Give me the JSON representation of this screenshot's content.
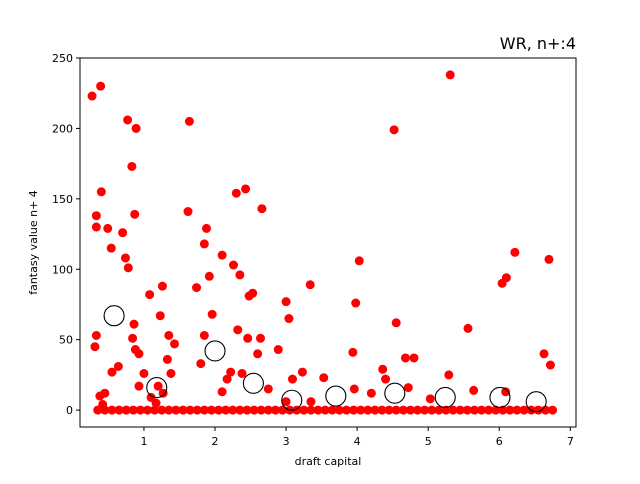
{
  "chart_data": {
    "type": "scatter",
    "title": "WR, n+:4",
    "xlabel": "draft capital",
    "ylabel": "fantasy value n+ 4",
    "xlim": [
      0.1,
      7.08
    ],
    "ylim": [
      -12,
      250
    ],
    "x_ticks": [
      1,
      2,
      3,
      4,
      5,
      6,
      7
    ],
    "y_ticks": [
      0,
      50,
      100,
      150,
      200,
      250
    ],
    "grid": false,
    "colors": {
      "points": "#ff0000",
      "means_edge": "#000000",
      "means_fill": "none"
    },
    "series": [
      {
        "marker": "filled-circle",
        "color": "#ff0000",
        "points": [
          [
            0.27,
            223
          ],
          [
            0.39,
            230
          ],
          [
            0.33,
            138
          ],
          [
            0.33,
            130
          ],
          [
            0.31,
            45
          ],
          [
            0.33,
            53
          ],
          [
            0.4,
            155
          ],
          [
            0.38,
            10
          ],
          [
            0.45,
            12
          ],
          [
            0.49,
            129
          ],
          [
            0.54,
            115
          ],
          [
            0.55,
            27
          ],
          [
            0.42,
            4
          ],
          [
            0.64,
            31
          ],
          [
            0.7,
            126
          ],
          [
            0.74,
            108
          ],
          [
            0.77,
            206
          ],
          [
            0.78,
            101
          ],
          [
            0.83,
            173
          ],
          [
            0.87,
            139
          ],
          [
            0.89,
            200
          ],
          [
            0.86,
            61
          ],
          [
            0.84,
            51
          ],
          [
            0.88,
            43
          ],
          [
            0.93,
            40
          ],
          [
            0.93,
            17
          ],
          [
            1.0,
            26
          ],
          [
            1.08,
            82
          ],
          [
            1.1,
            9
          ],
          [
            1.17,
            5
          ],
          [
            1.23,
            67
          ],
          [
            1.26,
            88
          ],
          [
            1.27,
            12
          ],
          [
            1.33,
            36
          ],
          [
            1.35,
            53
          ],
          [
            1.38,
            26
          ],
          [
            1.43,
            47
          ],
          [
            1.62,
            141
          ],
          [
            1.64,
            205
          ],
          [
            1.74,
            87
          ],
          [
            1.8,
            33
          ],
          [
            1.85,
            118
          ],
          [
            1.88,
            129
          ],
          [
            1.92,
            95
          ],
          [
            1.96,
            68
          ],
          [
            2.1,
            110
          ],
          [
            2.17,
            22
          ],
          [
            2.22,
            27
          ],
          [
            2.26,
            103
          ],
          [
            2.3,
            154
          ],
          [
            2.32,
            57
          ],
          [
            2.35,
            96
          ],
          [
            2.38,
            26
          ],
          [
            2.43,
            157
          ],
          [
            2.46,
            51
          ],
          [
            2.48,
            81
          ],
          [
            2.53,
            83
          ],
          [
            2.6,
            40
          ],
          [
            2.64,
            51
          ],
          [
            2.66,
            143
          ],
          [
            2.75,
            15
          ],
          [
            2.89,
            43
          ],
          [
            3.0,
            77
          ],
          [
            3.04,
            65
          ],
          [
            3.09,
            22
          ],
          [
            3.23,
            27
          ],
          [
            3.34,
            89
          ],
          [
            3.53,
            23
          ],
          [
            3.94,
            41
          ],
          [
            3.98,
            76
          ],
          [
            4.03,
            106
          ],
          [
            3.96,
            15
          ],
          [
            4.2,
            12
          ],
          [
            4.36,
            29
          ],
          [
            4.4,
            22
          ],
          [
            4.52,
            199
          ],
          [
            4.55,
            62
          ],
          [
            4.68,
            37
          ],
          [
            4.72,
            16
          ],
          [
            4.8,
            37
          ],
          [
            5.03,
            8
          ],
          [
            5.31,
            238
          ],
          [
            5.29,
            25
          ],
          [
            5.56,
            58
          ],
          [
            5.64,
            14
          ],
          [
            6.04,
            90
          ],
          [
            6.1,
            94
          ],
          [
            6.22,
            112
          ],
          [
            6.09,
            13
          ],
          [
            6.63,
            40
          ],
          [
            6.7,
            107
          ],
          [
            6.72,
            32
          ],
          [
            1.2,
            17
          ],
          [
            1.85,
            53
          ],
          [
            2.1,
            13
          ],
          [
            3.0,
            6
          ],
          [
            3.35,
            6
          ],
          [
            0.35,
            0
          ],
          [
            0.45,
            0
          ],
          [
            0.55,
            0
          ],
          [
            0.65,
            0
          ],
          [
            0.75,
            0
          ],
          [
            0.85,
            0
          ],
          [
            0.95,
            0
          ],
          [
            1.05,
            0
          ],
          [
            1.15,
            0
          ],
          [
            1.25,
            0
          ],
          [
            1.35,
            0
          ],
          [
            1.45,
            0
          ],
          [
            1.55,
            0
          ],
          [
            1.65,
            0
          ],
          [
            1.75,
            0
          ],
          [
            1.85,
            0
          ],
          [
            1.95,
            0
          ],
          [
            2.05,
            0
          ],
          [
            2.15,
            0
          ],
          [
            2.25,
            0
          ],
          [
            2.35,
            0
          ],
          [
            2.45,
            0
          ],
          [
            2.55,
            0
          ],
          [
            2.65,
            0
          ],
          [
            2.75,
            0
          ],
          [
            2.85,
            0
          ],
          [
            2.95,
            0
          ],
          [
            3.05,
            0
          ],
          [
            3.15,
            0
          ],
          [
            3.25,
            0
          ],
          [
            3.35,
            0
          ],
          [
            3.45,
            0
          ],
          [
            3.55,
            0
          ],
          [
            3.65,
            0
          ],
          [
            3.75,
            0
          ],
          [
            3.85,
            0
          ],
          [
            3.95,
            0
          ],
          [
            4.05,
            0
          ],
          [
            4.15,
            0
          ],
          [
            4.25,
            0
          ],
          [
            4.35,
            0
          ],
          [
            4.45,
            0
          ],
          [
            4.55,
            0
          ],
          [
            4.65,
            0
          ],
          [
            4.75,
            0
          ],
          [
            4.85,
            0
          ],
          [
            4.95,
            0
          ],
          [
            5.05,
            0
          ],
          [
            5.15,
            0
          ],
          [
            5.25,
            0
          ],
          [
            5.35,
            0
          ],
          [
            5.45,
            0
          ],
          [
            5.55,
            0
          ],
          [
            5.65,
            0
          ],
          [
            5.75,
            0
          ],
          [
            5.85,
            0
          ],
          [
            5.95,
            0
          ],
          [
            6.05,
            0
          ],
          [
            6.15,
            0
          ],
          [
            6.25,
            0
          ],
          [
            6.35,
            0
          ],
          [
            6.45,
            0
          ],
          [
            6.55,
            0
          ],
          [
            6.65,
            0
          ],
          [
            6.75,
            0
          ]
        ]
      },
      {
        "marker": "hollow-circle",
        "color": "#000000",
        "points": [
          [
            0.58,
            67
          ],
          [
            1.18,
            16
          ],
          [
            2.0,
            42
          ],
          [
            2.54,
            19
          ],
          [
            3.08,
            7
          ],
          [
            3.7,
            10
          ],
          [
            4.53,
            12
          ],
          [
            5.24,
            9
          ],
          [
            6.01,
            9
          ],
          [
            6.52,
            6
          ]
        ]
      }
    ]
  }
}
